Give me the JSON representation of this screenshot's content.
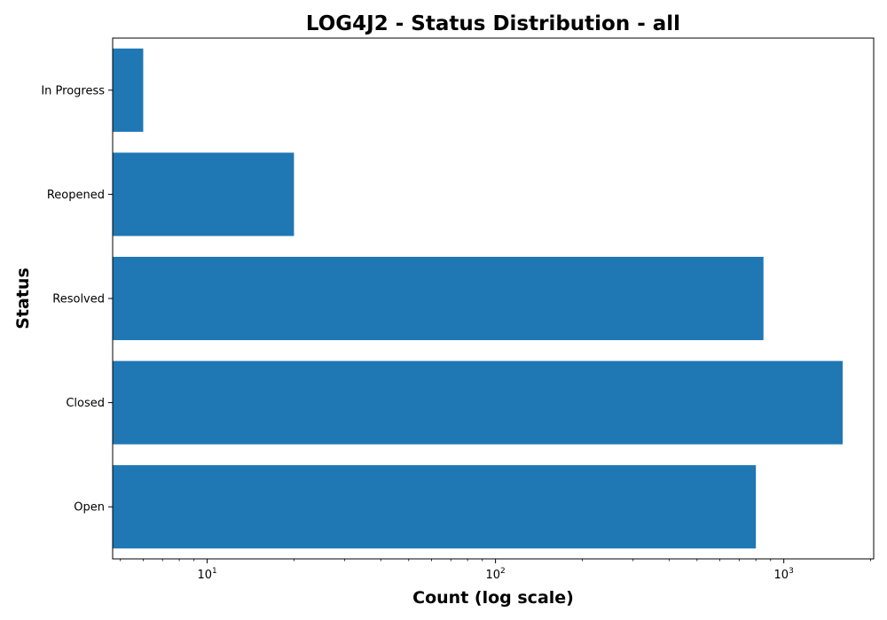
{
  "chart_data": {
    "type": "bar",
    "orientation": "horizontal",
    "title": "LOG4J2 - Status Distribution - all",
    "xlabel": "Count (log scale)",
    "ylabel": "Status",
    "xscale": "log",
    "xlim": [
      4.7,
      2050
    ],
    "categories": [
      "Open",
      "Closed",
      "Resolved",
      "Reopened",
      "In Progress"
    ],
    "values": [
      800,
      1600,
      850,
      20,
      6
    ],
    "x_ticks": [
      {
        "value": 10,
        "base": "10",
        "exp": "1"
      },
      {
        "value": 100,
        "base": "10",
        "exp": "2"
      },
      {
        "value": 1000,
        "base": "10",
        "exp": "3"
      }
    ],
    "bar_color": "#1f77b4",
    "grid": false,
    "legend": "none"
  }
}
